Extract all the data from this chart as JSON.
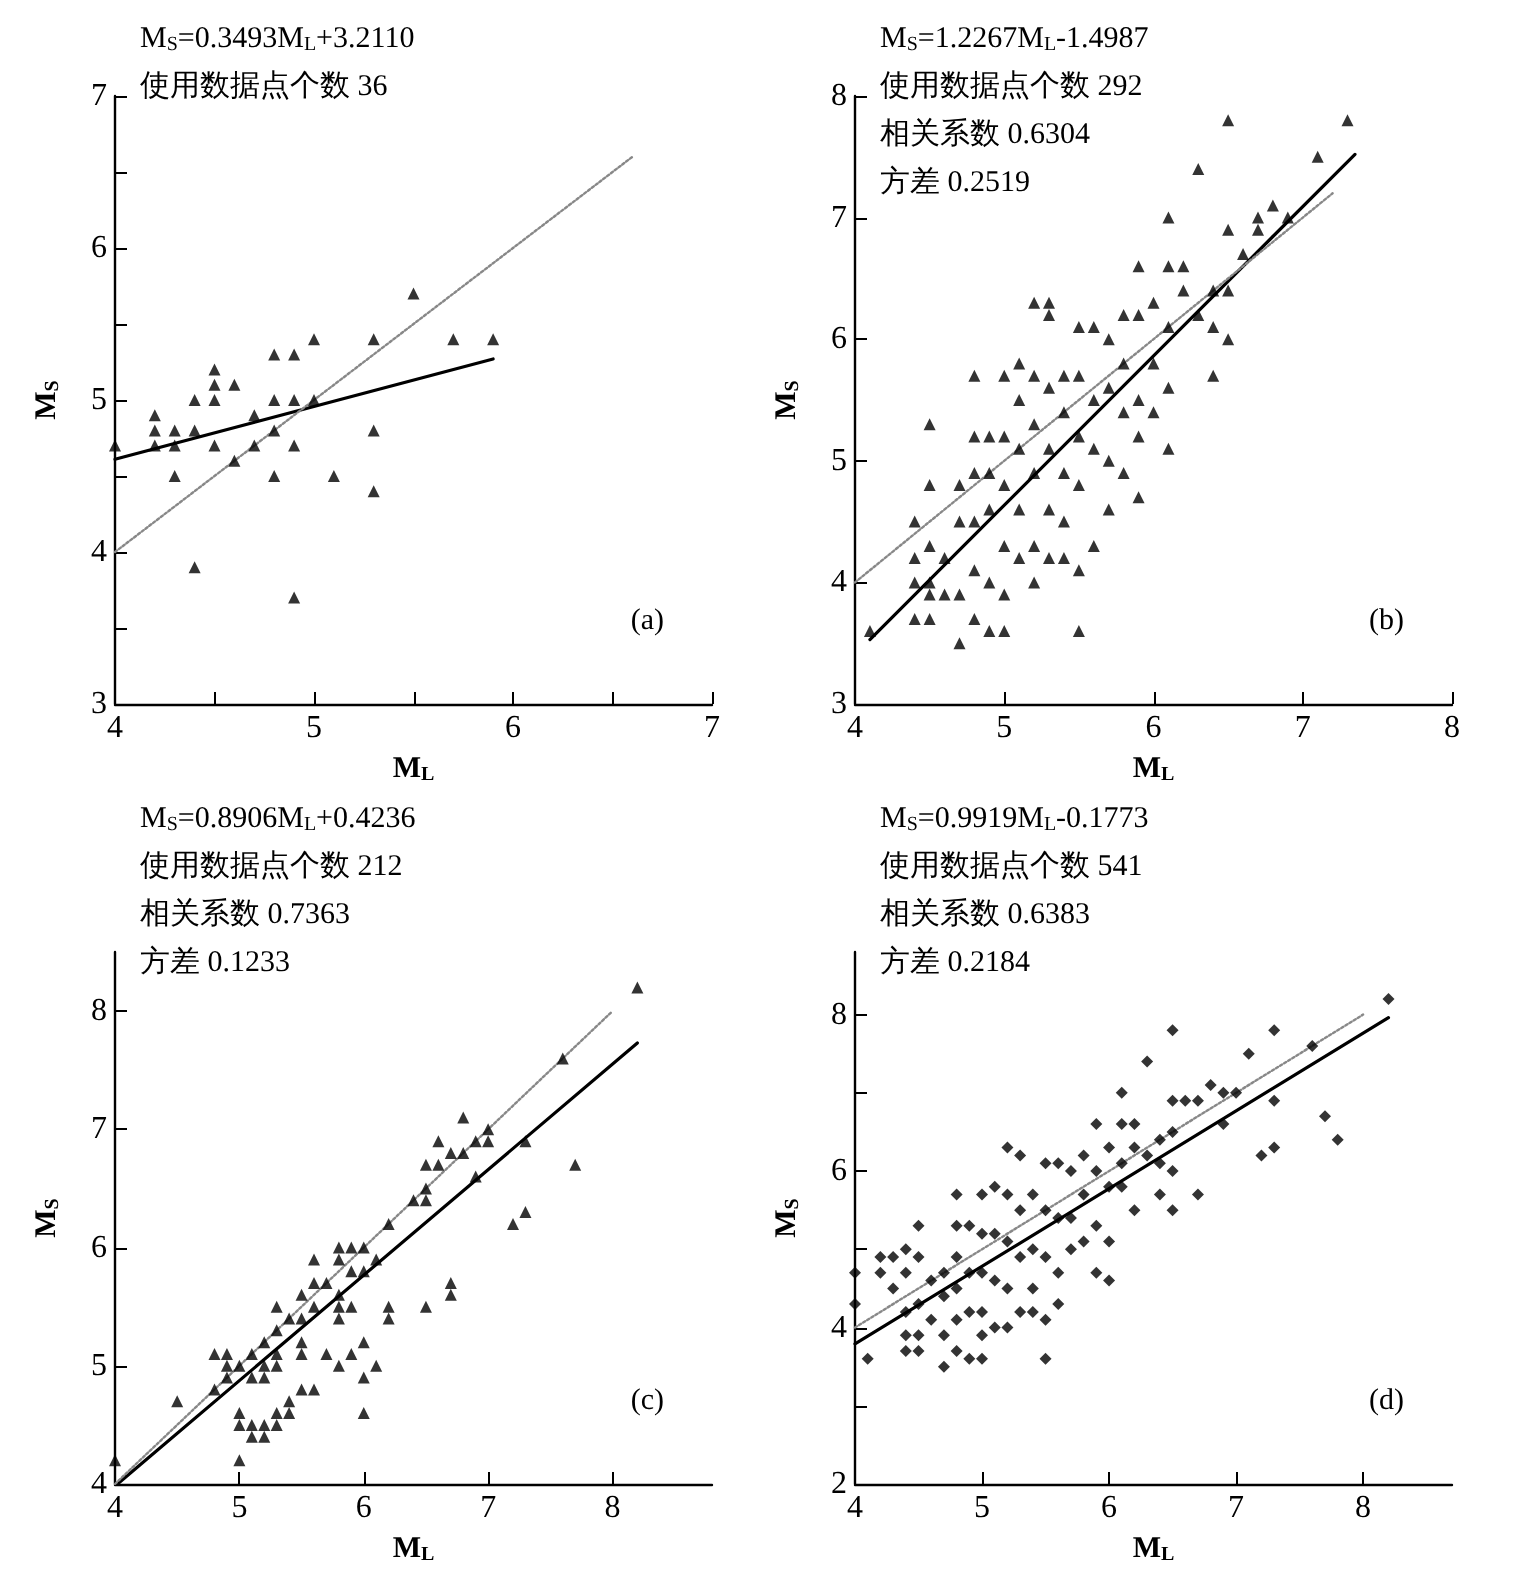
{
  "chart_data": [
    {
      "type": "scatter",
      "xlabel": "M$_{L}$",
      "ylabel": "M$_{S}$",
      "xlim": [
        4,
        7
      ],
      "ylim": [
        3,
        7
      ],
      "xticks": [
        4,
        {
          "value": 4.5,
          "label": null
        },
        5,
        {
          "value": 5.5,
          "label": null
        },
        6,
        {
          "value": 6.5,
          "label": null
        },
        7
      ],
      "yticks": [
        3,
        {
          "value": 3.5,
          "label": null
        },
        4,
        {
          "value": 4.5,
          "label": null
        },
        5,
        {
          "value": 5.5,
          "label": null
        },
        6,
        {
          "value": 6.5,
          "label": null
        },
        7
      ],
      "annotations": [
        "M$_{S}$=0.3493M$_{L}$+3.2110",
        "使用数据点个数 36",
        "(a)"
      ],
      "series": [
        {
          "type": "scatter",
          "marker": "triangle",
          "color": "#000000",
          "x": [
            4.0,
            4.2,
            4.2,
            4.2,
            4.3,
            4.3,
            4.3,
            4.4,
            4.4,
            4.4,
            4.5,
            4.5,
            4.5,
            4.5,
            4.6,
            4.6,
            4.7,
            4.7,
            4.8,
            4.8,
            4.8,
            4.8,
            4.9,
            4.9,
            4.9,
            4.9,
            5.0,
            5.0,
            5.1,
            5.3,
            5.3,
            5.3,
            5.5,
            5.7,
            5.9
          ],
          "values": [
            4.7,
            4.9,
            4.8,
            4.7,
            4.8,
            4.7,
            4.5,
            5.0,
            4.8,
            3.9,
            5.2,
            5.1,
            5.0,
            4.7,
            5.1,
            4.6,
            4.9,
            4.7,
            5.3,
            5.0,
            4.8,
            4.5,
            5.3,
            5.0,
            4.7,
            3.7,
            5.4,
            5.0,
            4.5,
            5.4,
            4.8,
            4.4,
            5.7,
            5.4,
            5.4
          ]
        },
        {
          "type": "line",
          "marker": "none",
          "line_style": "solid",
          "color": "#000000",
          "x": [
            4,
            5.9
          ],
          "values": [
            4.61,
            5.27
          ]
        },
        {
          "type": "line",
          "marker": "none",
          "line_style": "dotted",
          "color": "#888888",
          "x": [
            4,
            6.6
          ],
          "values": [
            4,
            6.6
          ]
        }
      ]
    },
    {
      "type": "scatter",
      "xlabel": "M$_{L}$",
      "ylabel": "M$_{S}$",
      "xlim": [
        4,
        8
      ],
      "ylim": [
        3,
        8
      ],
      "xticks": [
        4,
        5,
        6,
        7,
        8
      ],
      "yticks": [
        3,
        4,
        5,
        6,
        7,
        8
      ],
      "annotations": [
        "M$_{S}$=1.2267M$_{L}$-1.4987",
        "使用数据点个数 292",
        "相关系数 0.6304",
        "方差 0.2519",
        "(b)"
      ],
      "series": [
        {
          "type": "scatter",
          "marker": "triangle",
          "color": "#000000",
          "x": [
            4.1,
            4.4,
            4.4,
            4.4,
            4.4,
            4.5,
            4.5,
            4.5,
            4.5,
            4.5,
            4.5,
            4.6,
            4.6,
            4.7,
            4.7,
            4.7,
            4.7,
            4.8,
            4.8,
            4.8,
            4.8,
            4.8,
            4.8,
            4.9,
            4.9,
            4.9,
            4.9,
            4.9,
            5.0,
            5.0,
            5.0,
            5.0,
            5.0,
            5.0,
            5.1,
            5.1,
            5.1,
            5.1,
            5.1,
            5.2,
            5.2,
            5.2,
            5.2,
            5.2,
            5.2,
            5.3,
            5.3,
            5.3,
            5.3,
            5.3,
            5.3,
            5.4,
            5.4,
            5.4,
            5.4,
            5.4,
            5.5,
            5.5,
            5.5,
            5.5,
            5.5,
            5.5,
            5.6,
            5.6,
            5.6,
            5.6,
            5.7,
            5.7,
            5.7,
            5.7,
            5.8,
            5.8,
            5.8,
            5.8,
            5.9,
            5.9,
            5.9,
            5.9,
            5.9,
            6.0,
            6.0,
            6.0,
            6.1,
            6.1,
            6.1,
            6.1,
            6.1,
            6.2,
            6.2,
            6.3,
            6.3,
            6.4,
            6.4,
            6.4,
            6.5,
            6.5,
            6.5,
            6.5,
            6.6,
            6.7,
            6.7,
            6.8,
            6.9,
            7.1,
            7.3
          ],
          "values": [
            3.6,
            4.5,
            4.2,
            4.0,
            3.7,
            5.3,
            4.8,
            4.3,
            4.0,
            3.7,
            3.9,
            4.2,
            3.9,
            4.8,
            4.5,
            3.9,
            3.5,
            5.7,
            5.2,
            4.9,
            4.5,
            4.1,
            3.7,
            5.2,
            4.9,
            4.6,
            4.0,
            3.6,
            5.7,
            5.2,
            4.8,
            4.3,
            3.9,
            3.6,
            5.8,
            5.5,
            5.1,
            4.6,
            4.2,
            6.3,
            5.7,
            5.3,
            4.9,
            4.3,
            4.0,
            6.3,
            6.2,
            5.6,
            5.1,
            4.6,
            4.2,
            5.7,
            5.4,
            4.9,
            4.5,
            4.2,
            6.1,
            5.7,
            5.2,
            4.8,
            4.1,
            3.6,
            6.1,
            5.5,
            5.1,
            4.3,
            6.0,
            5.6,
            5.0,
            4.6,
            6.2,
            5.8,
            5.4,
            4.9,
            6.6,
            6.2,
            5.5,
            5.2,
            4.7,
            6.3,
            5.8,
            5.4,
            7.0,
            6.6,
            6.1,
            5.6,
            5.1,
            6.6,
            6.4,
            7.4,
            6.2,
            6.4,
            6.1,
            5.7,
            7.8,
            6.9,
            6.4,
            6.0,
            6.7,
            7.0,
            6.9,
            7.1,
            7.0,
            7.5,
            7.8
          ]
        },
        {
          "type": "line",
          "marker": "none",
          "line_style": "solid",
          "color": "#000000",
          "x": [
            4.1,
            7.35
          ],
          "values": [
            3.53,
            7.52
          ]
        },
        {
          "type": "line",
          "marker": "none",
          "line_style": "dotted",
          "color": "#888888",
          "x": [
            4,
            7.2
          ],
          "values": [
            4,
            7.2
          ]
        }
      ]
    },
    {
      "type": "scatter",
      "xlabel": "M$_{L}$",
      "ylabel": "M$_{S}$",
      "xlim": [
        4,
        8.8
      ],
      "ylim": [
        4,
        8.5
      ],
      "xticks": [
        4,
        5,
        6,
        7,
        8
      ],
      "yticks": [
        4,
        5,
        6,
        7,
        8
      ],
      "annotations": [
        "M$_{S}$=0.8906M$_{L}$+0.4236",
        "使用数据点个数 212",
        "相关系数 0.7363",
        "方差 0.1233",
        "(c)"
      ],
      "series": [
        {
          "type": "scatter",
          "marker": "triangle",
          "color": "#000000",
          "x": [
            4.0,
            4.5,
            4.8,
            4.8,
            4.9,
            4.9,
            4.9,
            5.0,
            5.0,
            5.0,
            5.0,
            5.1,
            5.1,
            5.1,
            5.1,
            5.2,
            5.2,
            5.2,
            5.2,
            5.2,
            5.3,
            5.3,
            5.3,
            5.3,
            5.3,
            5.3,
            5.4,
            5.4,
            5.4,
            5.5,
            5.5,
            5.5,
            5.5,
            5.5,
            5.6,
            5.6,
            5.6,
            5.6,
            5.7,
            5.7,
            5.8,
            5.8,
            5.8,
            5.8,
            5.8,
            5.8,
            5.9,
            5.9,
            5.9,
            5.9,
            6.0,
            6.0,
            6.0,
            6.0,
            6.0,
            6.1,
            6.1,
            6.2,
            6.2,
            6.2,
            6.4,
            6.5,
            6.5,
            6.5,
            6.5,
            6.6,
            6.6,
            6.7,
            6.7,
            6.7,
            6.8,
            6.8,
            6.9,
            6.9,
            7.0,
            7.0,
            7.2,
            7.3,
            7.3,
            7.6,
            7.7,
            8.2
          ],
          "values": [
            4.2,
            4.7,
            5.1,
            4.8,
            5.1,
            5.0,
            4.9,
            5.0,
            4.6,
            4.5,
            4.2,
            5.1,
            4.9,
            4.5,
            4.4,
            5.2,
            5.0,
            4.9,
            4.5,
            4.4,
            5.5,
            5.3,
            5.1,
            5.0,
            4.6,
            4.5,
            5.4,
            4.7,
            4.6,
            5.6,
            5.4,
            5.2,
            5.1,
            4.8,
            5.9,
            5.7,
            5.5,
            4.8,
            5.7,
            5.1,
            6.0,
            5.9,
            5.6,
            5.5,
            5.4,
            5.0,
            6.0,
            5.8,
            5.5,
            5.1,
            6.0,
            5.8,
            5.2,
            4.9,
            4.6,
            5.9,
            5.0,
            6.2,
            5.5,
            5.4,
            6.4,
            6.7,
            6.5,
            6.4,
            5.5,
            6.9,
            6.7,
            6.8,
            5.7,
            5.6,
            7.1,
            6.8,
            6.9,
            6.6,
            7.0,
            6.9,
            6.2,
            6.9,
            6.3,
            7.6,
            6.7,
            8.2
          ]
        },
        {
          "type": "line",
          "marker": "none",
          "line_style": "solid",
          "color": "#000000",
          "x": [
            4.02,
            8.2
          ],
          "values": [
            4.0,
            7.73
          ]
        },
        {
          "type": "line",
          "marker": "none",
          "line_style": "dotted",
          "color": "#888888",
          "x": [
            4,
            8
          ],
          "values": [
            4,
            8
          ]
        }
      ]
    },
    {
      "type": "scatter",
      "xlabel": "M$_{L}$",
      "ylabel": "M$_{S}$",
      "xlim": [
        4,
        8.7
      ],
      "ylim": [
        2,
        8.8
      ],
      "xticks": [
        4,
        5,
        6,
        7,
        8
      ],
      "yticks": [
        2,
        {
          "value": 3,
          "label": null
        },
        4,
        {
          "value": 5,
          "label": null
        },
        6,
        {
          "value": 7,
          "label": null
        },
        8
      ],
      "annotations": [
        "M$_{S}$=0.9919M$_{L}$-0.1773",
        "使用数据点个数 541",
        "相关系数 0.6383",
        "方差 0.2184",
        "(d)"
      ],
      "series": [
        {
          "type": "scatter",
          "marker": "diamond",
          "color": "#000000",
          "x": [
            4.0,
            4.0,
            4.1,
            4.2,
            4.2,
            4.3,
            4.3,
            4.4,
            4.4,
            4.4,
            4.4,
            4.4,
            4.5,
            4.5,
            4.5,
            4.5,
            4.5,
            4.6,
            4.6,
            4.7,
            4.7,
            4.7,
            4.7,
            4.8,
            4.8,
            4.8,
            4.8,
            4.8,
            4.8,
            4.9,
            4.9,
            4.9,
            4.9,
            5.0,
            5.0,
            5.0,
            5.0,
            5.0,
            5.0,
            5.1,
            5.1,
            5.1,
            5.1,
            5.2,
            5.2,
            5.2,
            5.2,
            5.2,
            5.3,
            5.3,
            5.3,
            5.3,
            5.4,
            5.4,
            5.4,
            5.4,
            5.5,
            5.5,
            5.5,
            5.5,
            5.5,
            5.6,
            5.6,
            5.6,
            5.6,
            5.7,
            5.7,
            5.7,
            5.8,
            5.8,
            5.8,
            5.9,
            5.9,
            5.9,
            5.9,
            6.0,
            6.0,
            6.0,
            6.0,
            6.1,
            6.1,
            6.1,
            6.1,
            6.2,
            6.2,
            6.2,
            6.3,
            6.3,
            6.4,
            6.4,
            6.4,
            6.5,
            6.5,
            6.5,
            6.5,
            6.5,
            6.6,
            6.7,
            6.7,
            6.8,
            6.9,
            6.9,
            7.0,
            7.1,
            7.2,
            7.3,
            7.3,
            7.3,
            7.6,
            7.7,
            7.8,
            8.2
          ],
          "values": [
            4.7,
            4.3,
            3.6,
            4.9,
            4.7,
            4.9,
            4.5,
            5.0,
            4.7,
            4.2,
            3.9,
            3.7,
            5.3,
            4.9,
            4.3,
            3.9,
            3.7,
            4.6,
            4.1,
            4.7,
            4.4,
            3.9,
            3.5,
            5.7,
            5.3,
            4.9,
            4.5,
            4.1,
            3.7,
            5.3,
            4.7,
            4.2,
            3.6,
            5.7,
            5.2,
            4.7,
            4.2,
            3.9,
            3.6,
            5.8,
            5.2,
            4.6,
            4.0,
            6.3,
            5.7,
            5.1,
            4.5,
            4.0,
            6.2,
            5.5,
            4.9,
            4.2,
            5.7,
            5.0,
            4.5,
            4.2,
            6.1,
            5.5,
            4.9,
            4.1,
            3.6,
            6.1,
            5.4,
            4.7,
            4.3,
            6.0,
            5.4,
            5.0,
            6.2,
            5.7,
            5.1,
            6.6,
            6.0,
            5.3,
            4.7,
            6.3,
            5.8,
            5.1,
            4.6,
            7.0,
            6.6,
            6.1,
            5.8,
            6.6,
            6.3,
            5.5,
            7.4,
            6.2,
            6.4,
            6.1,
            5.7,
            7.8,
            6.9,
            6.5,
            6.0,
            5.5,
            6.9,
            6.9,
            5.7,
            7.1,
            7.0,
            6.6,
            7.0,
            7.5,
            6.2,
            7.8,
            6.9,
            6.3,
            7.6,
            6.7,
            6.4,
            8.2
          ]
        },
        {
          "type": "line",
          "marker": "none",
          "line_style": "solid",
          "color": "#000000",
          "x": [
            4,
            8.2
          ],
          "values": [
            3.79,
            7.96
          ]
        },
        {
          "type": "line",
          "marker": "none",
          "line_style": "dotted",
          "color": "#888888",
          "x": [
            4,
            8
          ],
          "values": [
            4,
            8
          ]
        }
      ]
    }
  ]
}
